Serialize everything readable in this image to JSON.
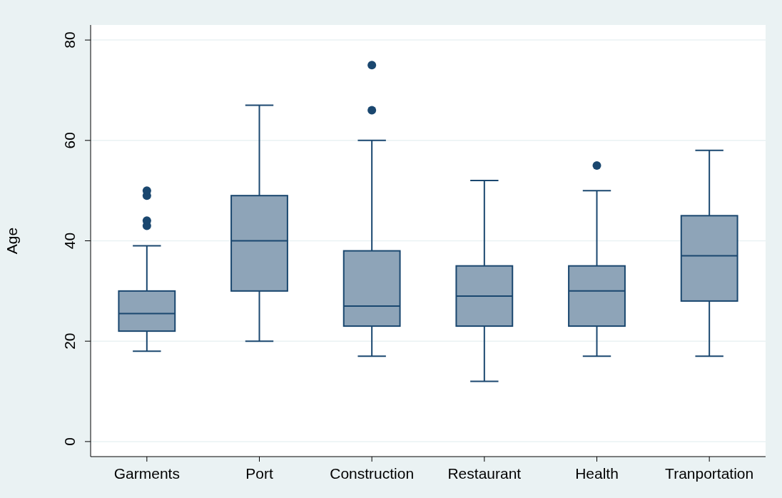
{
  "chart_data": {
    "type": "box",
    "ylabel": "Age",
    "categories": [
      "Garments",
      "Port",
      "Construction",
      "Restaurant",
      "Health",
      "Tranportation"
    ],
    "color": "#8ea4b8",
    "ylim": [
      -3,
      83
    ],
    "yticks": [
      0,
      20,
      40,
      60,
      80
    ],
    "grid": "y",
    "boxes": [
      {
        "low": 18,
        "q1": 22,
        "median": 25.5,
        "q3": 30,
        "high": 39,
        "outliers": [
          43,
          44,
          49,
          50
        ]
      },
      {
        "low": 20,
        "q1": 30,
        "median": 40,
        "q3": 49,
        "high": 67
      },
      {
        "low": 17,
        "q1": 23,
        "median": 27,
        "q3": 38,
        "high": 60,
        "outliers": [
          66,
          75
        ]
      },
      {
        "low": 12,
        "q1": 23,
        "median": 29,
        "q3": 35,
        "high": 52
      },
      {
        "low": 17,
        "q1": 23,
        "median": 30,
        "q3": 35,
        "high": 50,
        "outliers": [
          55
        ]
      },
      {
        "low": 17,
        "q1": 28,
        "median": 37,
        "q3": 45,
        "high": 58
      }
    ]
  }
}
